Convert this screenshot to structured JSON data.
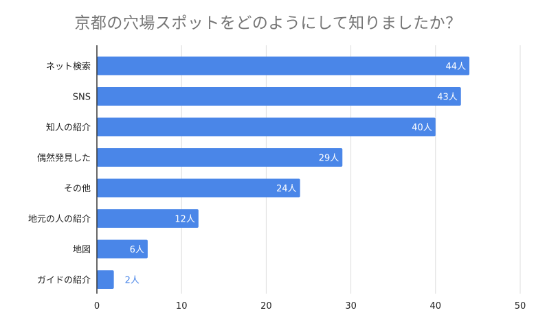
{
  "chart_data": {
    "type": "bar",
    "orientation": "horizontal",
    "title": "京都の穴場スポットをどのようにして知りましたか？",
    "categories": [
      "ネット検索",
      "SNS",
      "知人の紹介",
      "偶然発見した",
      "その他",
      "地元の人の紹介",
      "地図",
      "ガイドの紹介"
    ],
    "values": [
      44,
      43,
      40,
      29,
      24,
      12,
      6,
      2
    ],
    "value_labels": [
      "44人",
      "43人",
      "40人",
      "29人",
      "24人",
      "12人",
      "6人",
      "2人"
    ],
    "xlim": [
      0,
      50
    ],
    "xticks": [
      0,
      10,
      20,
      30,
      40,
      50
    ],
    "xlabel": "",
    "ylabel": "",
    "grid": true,
    "legend": "none",
    "colors": {
      "bar": "#4a86e8",
      "grid": "#dcdcdc",
      "axis": "#333333",
      "label_inside": "#ffffff",
      "label_outside": "#4a86e8"
    }
  }
}
